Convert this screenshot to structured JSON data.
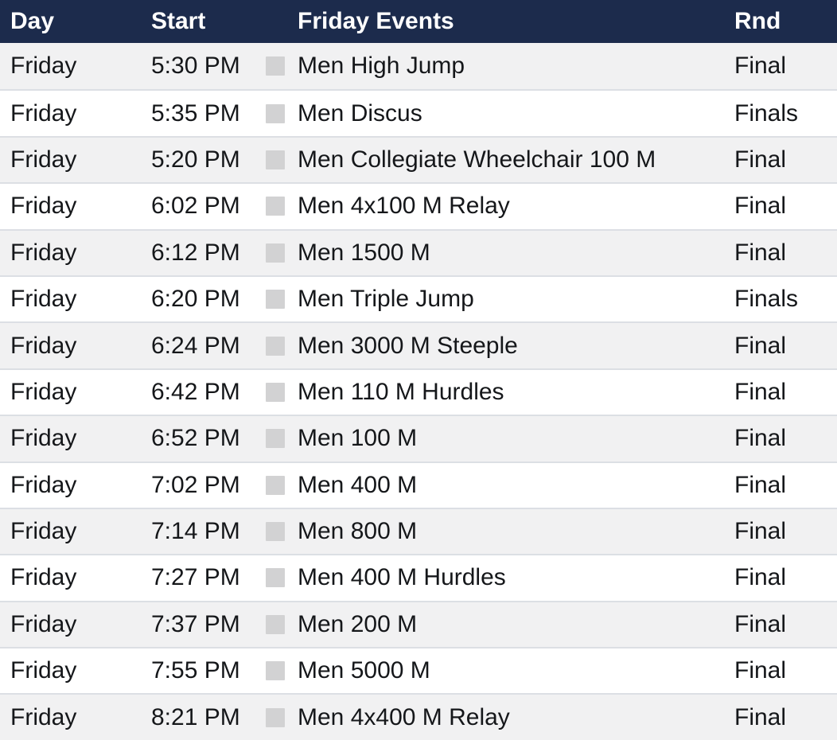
{
  "table": {
    "columns": {
      "day": "Day",
      "start": "Start",
      "event": "Friday Events",
      "rnd": "Rnd"
    },
    "rows": [
      {
        "day": "Friday",
        "start": "5:30 PM",
        "event": "Men High Jump",
        "rnd": "Final"
      },
      {
        "day": "Friday",
        "start": "5:35 PM",
        "event": "Men Discus",
        "rnd": "Finals"
      },
      {
        "day": "Friday",
        "start": "5:20 PM",
        "event": "Men Collegiate Wheelchair 100 M",
        "rnd": "Final"
      },
      {
        "day": "Friday",
        "start": "6:02 PM",
        "event": "Men 4x100 M Relay",
        "rnd": "Final"
      },
      {
        "day": "Friday",
        "start": "6:12 PM",
        "event": "Men 1500 M",
        "rnd": "Final"
      },
      {
        "day": "Friday",
        "start": "6:20 PM",
        "event": "Men Triple Jump",
        "rnd": "Finals"
      },
      {
        "day": "Friday",
        "start": "6:24 PM",
        "event": "Men 3000 M Steeple",
        "rnd": "Final"
      },
      {
        "day": "Friday",
        "start": "6:42 PM",
        "event": "Men 110 M Hurdles",
        "rnd": "Final"
      },
      {
        "day": "Friday",
        "start": "6:52 PM",
        "event": "Men 100 M",
        "rnd": "Final"
      },
      {
        "day": "Friday",
        "start": "7:02 PM",
        "event": "Men 400 M",
        "rnd": "Final"
      },
      {
        "day": "Friday",
        "start": "7:14 PM",
        "event": "Men 800 M",
        "rnd": "Final"
      },
      {
        "day": "Friday",
        "start": "7:27 PM",
        "event": "Men 400 M Hurdles",
        "rnd": "Final"
      },
      {
        "day": "Friday",
        "start": "7:37 PM",
        "event": "Men 200 M",
        "rnd": "Final"
      },
      {
        "day": "Friday",
        "start": "7:55 PM",
        "event": "Men 5000 M",
        "rnd": "Final"
      },
      {
        "day": "Friday",
        "start": "8:21 PM",
        "event": "Men 4x400 M Relay",
        "rnd": "Final"
      }
    ]
  },
  "icons": {
    "event_marker": "gray-square"
  },
  "colors": {
    "header_bg": "#1c2b4c",
    "header_text": "#ffffff",
    "row_bg": "#ffffff",
    "row_alt_bg": "#f1f1f2",
    "separator": "#dcdfe4",
    "icon": "#d2d2d3",
    "text": "#15171a"
  }
}
